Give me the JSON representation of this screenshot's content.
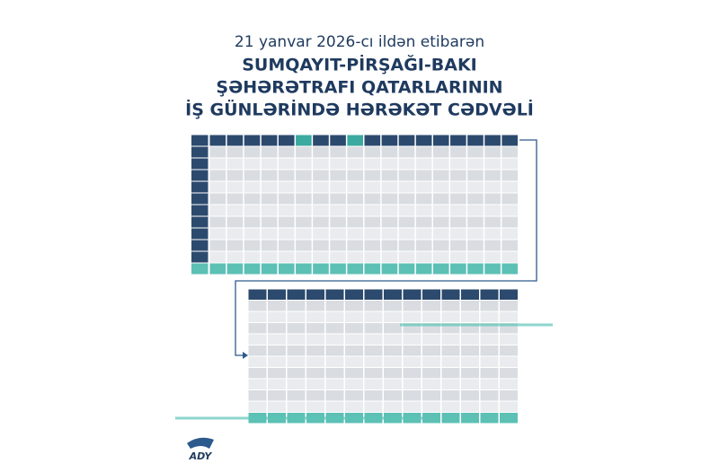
{
  "header": {
    "lines": [
      "21 yanvar 2026-cı ildən etibarən",
      "SUMQAYIT-PİRŞAĞI-BAKI",
      "ŞƏHƏRƏTRAFI QATARLARININ",
      "İŞ GÜNLƏRİNDƏ HƏRƏKƏT CƏDVƏLİ"
    ]
  },
  "logo": "ADY"
}
